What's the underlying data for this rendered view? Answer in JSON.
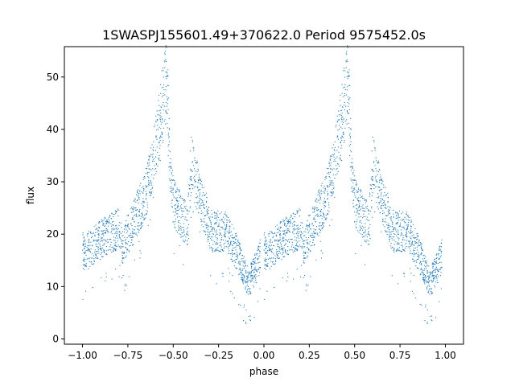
{
  "chart_data": {
    "type": "scatter",
    "title": "1SWASPJ155601.49+370622.0 Period 9575452.0s",
    "xlabel": "phase",
    "ylabel": "flux",
    "xlim": [
      -1.1,
      1.1
    ],
    "ylim": [
      -1.0,
      55.8
    ],
    "xticks": [
      "−1.00",
      "−0.75",
      "−0.50",
      "−0.25",
      "0.00",
      "0.25",
      "0.50",
      "0.75",
      "1.00"
    ],
    "xtick_values": [
      -1.0,
      -0.75,
      -0.5,
      -0.25,
      0.0,
      0.25,
      0.5,
      0.75,
      1.0
    ],
    "yticks": [
      "0",
      "10",
      "20",
      "30",
      "40",
      "50"
    ],
    "ytick_values": [
      0,
      10,
      20,
      30,
      40,
      50
    ],
    "grid": false,
    "marker_color": "#1f77b4",
    "series": [
      {
        "phase_flux_outline": [
          [
            0.0,
            17.0
          ],
          [
            0.02,
            16.5
          ],
          [
            0.05,
            17.5
          ],
          [
            0.08,
            18.5
          ],
          [
            0.1,
            19.0
          ],
          [
            0.12,
            19.5
          ],
          [
            0.15,
            20.0
          ],
          [
            0.18,
            20.5
          ],
          [
            0.2,
            21.0
          ],
          [
            0.22,
            18.0
          ],
          [
            0.25,
            20.0
          ],
          [
            0.28,
            22.0
          ],
          [
            0.3,
            24.0
          ],
          [
            0.33,
            26.0
          ],
          [
            0.35,
            28.0
          ],
          [
            0.38,
            32.0
          ],
          [
            0.4,
            36.0
          ],
          [
            0.42,
            40.0
          ],
          [
            0.44,
            45.0
          ],
          [
            0.46,
            50.0
          ],
          [
            0.47,
            45.0
          ],
          [
            0.48,
            35.0
          ],
          [
            0.5,
            26.0
          ],
          [
            0.52,
            25.0
          ],
          [
            0.55,
            23.0
          ],
          [
            0.58,
            22.0
          ],
          [
            0.6,
            34.0
          ],
          [
            0.62,
            31.0
          ],
          [
            0.65,
            27.0
          ],
          [
            0.68,
            24.0
          ],
          [
            0.7,
            21.0
          ],
          [
            0.72,
            20.5
          ],
          [
            0.75,
            20.5
          ],
          [
            0.78,
            20.5
          ],
          [
            0.8,
            20.0
          ],
          [
            0.82,
            18.5
          ],
          [
            0.85,
            16.5
          ],
          [
            0.88,
            14.0
          ],
          [
            0.9,
            12.0
          ],
          [
            0.92,
            11.0
          ],
          [
            0.94,
            12.5
          ],
          [
            0.96,
            14.0
          ],
          [
            0.98,
            16.0
          ]
        ]
      }
    ]
  }
}
